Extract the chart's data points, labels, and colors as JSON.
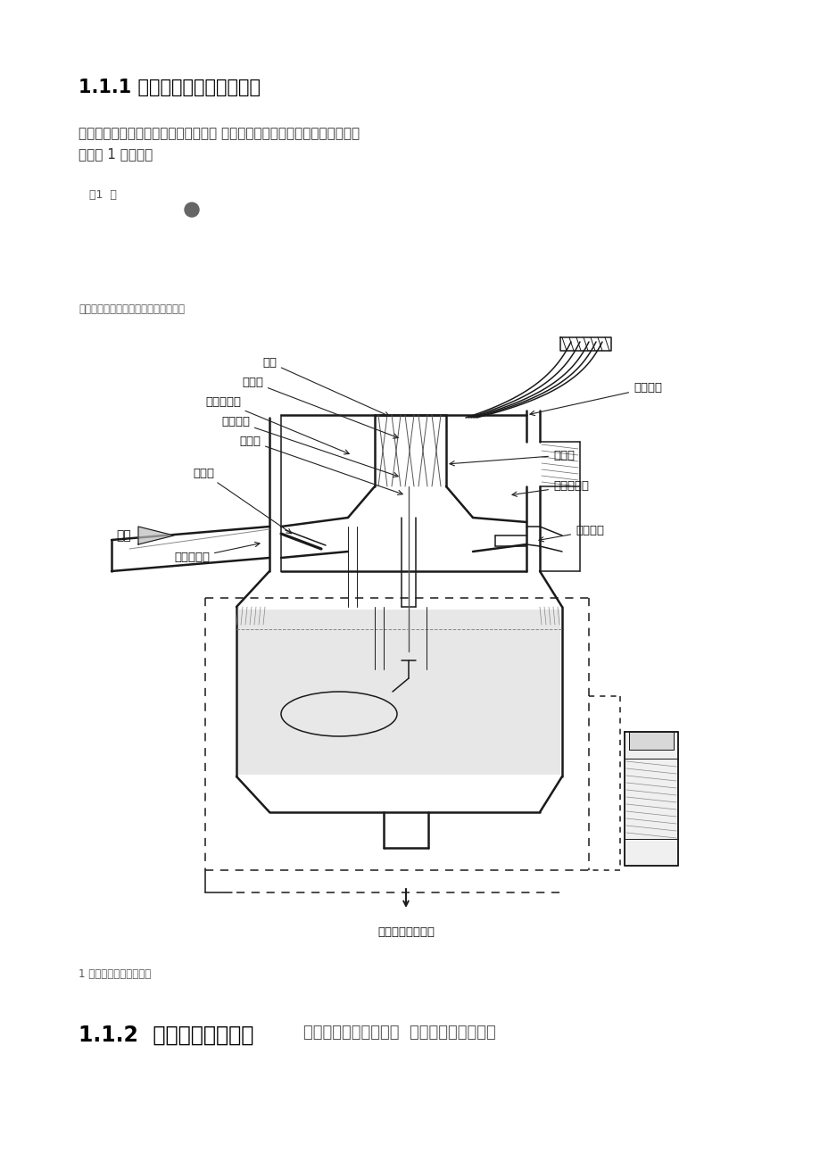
{
  "bg_color": "#ffffff",
  "title1": "1.1.1 柱塞式化油器的基本结构",
  "para1_line1": "摩托车化油器主要零件包括、进油阀、 溢油管、泡沫管、喷管等，其具体的结",
  "para1_line2": "构如图 1 所示：构",
  "page_note": "页1  第",
  "subtitle": "摩托车化油器的优缺点和未来发展方向",
  "fig_caption": "1 柱塞式化油器结构图图",
  "title2_bold": "1.1.2  化油器的工作原理",
  "title2_normal": "怠速包括了启动工况、  摩托车化油器是根据",
  "label_zhusai": "柱塞",
  "label_zhupenguan": "主喷管",
  "label_zhukongqiliangkong": "主空气量孔",
  "label_zhupamoguan": "主泡沫管",
  "label_zhuliangkong": "主量孔",
  "label_zufengmen": "阻风门",
  "label_kongqi": "空气",
  "label_zhukongqiliangkong2": "主空气量孔",
  "label_youmenlaxian": "油门拉线",
  "label_zhuyouzhen": "主油针",
  "label_disuchuyoukou": "低速出油口",
  "label_disuliangkong": "怠速量孔",
  "label_bottom": "怠速空气调节螺钉",
  "col_line": "#1a1a1a",
  "col_text": "#111111",
  "col_gray_light": "#d0d0d0",
  "col_gray_med": "#b0b0b0"
}
